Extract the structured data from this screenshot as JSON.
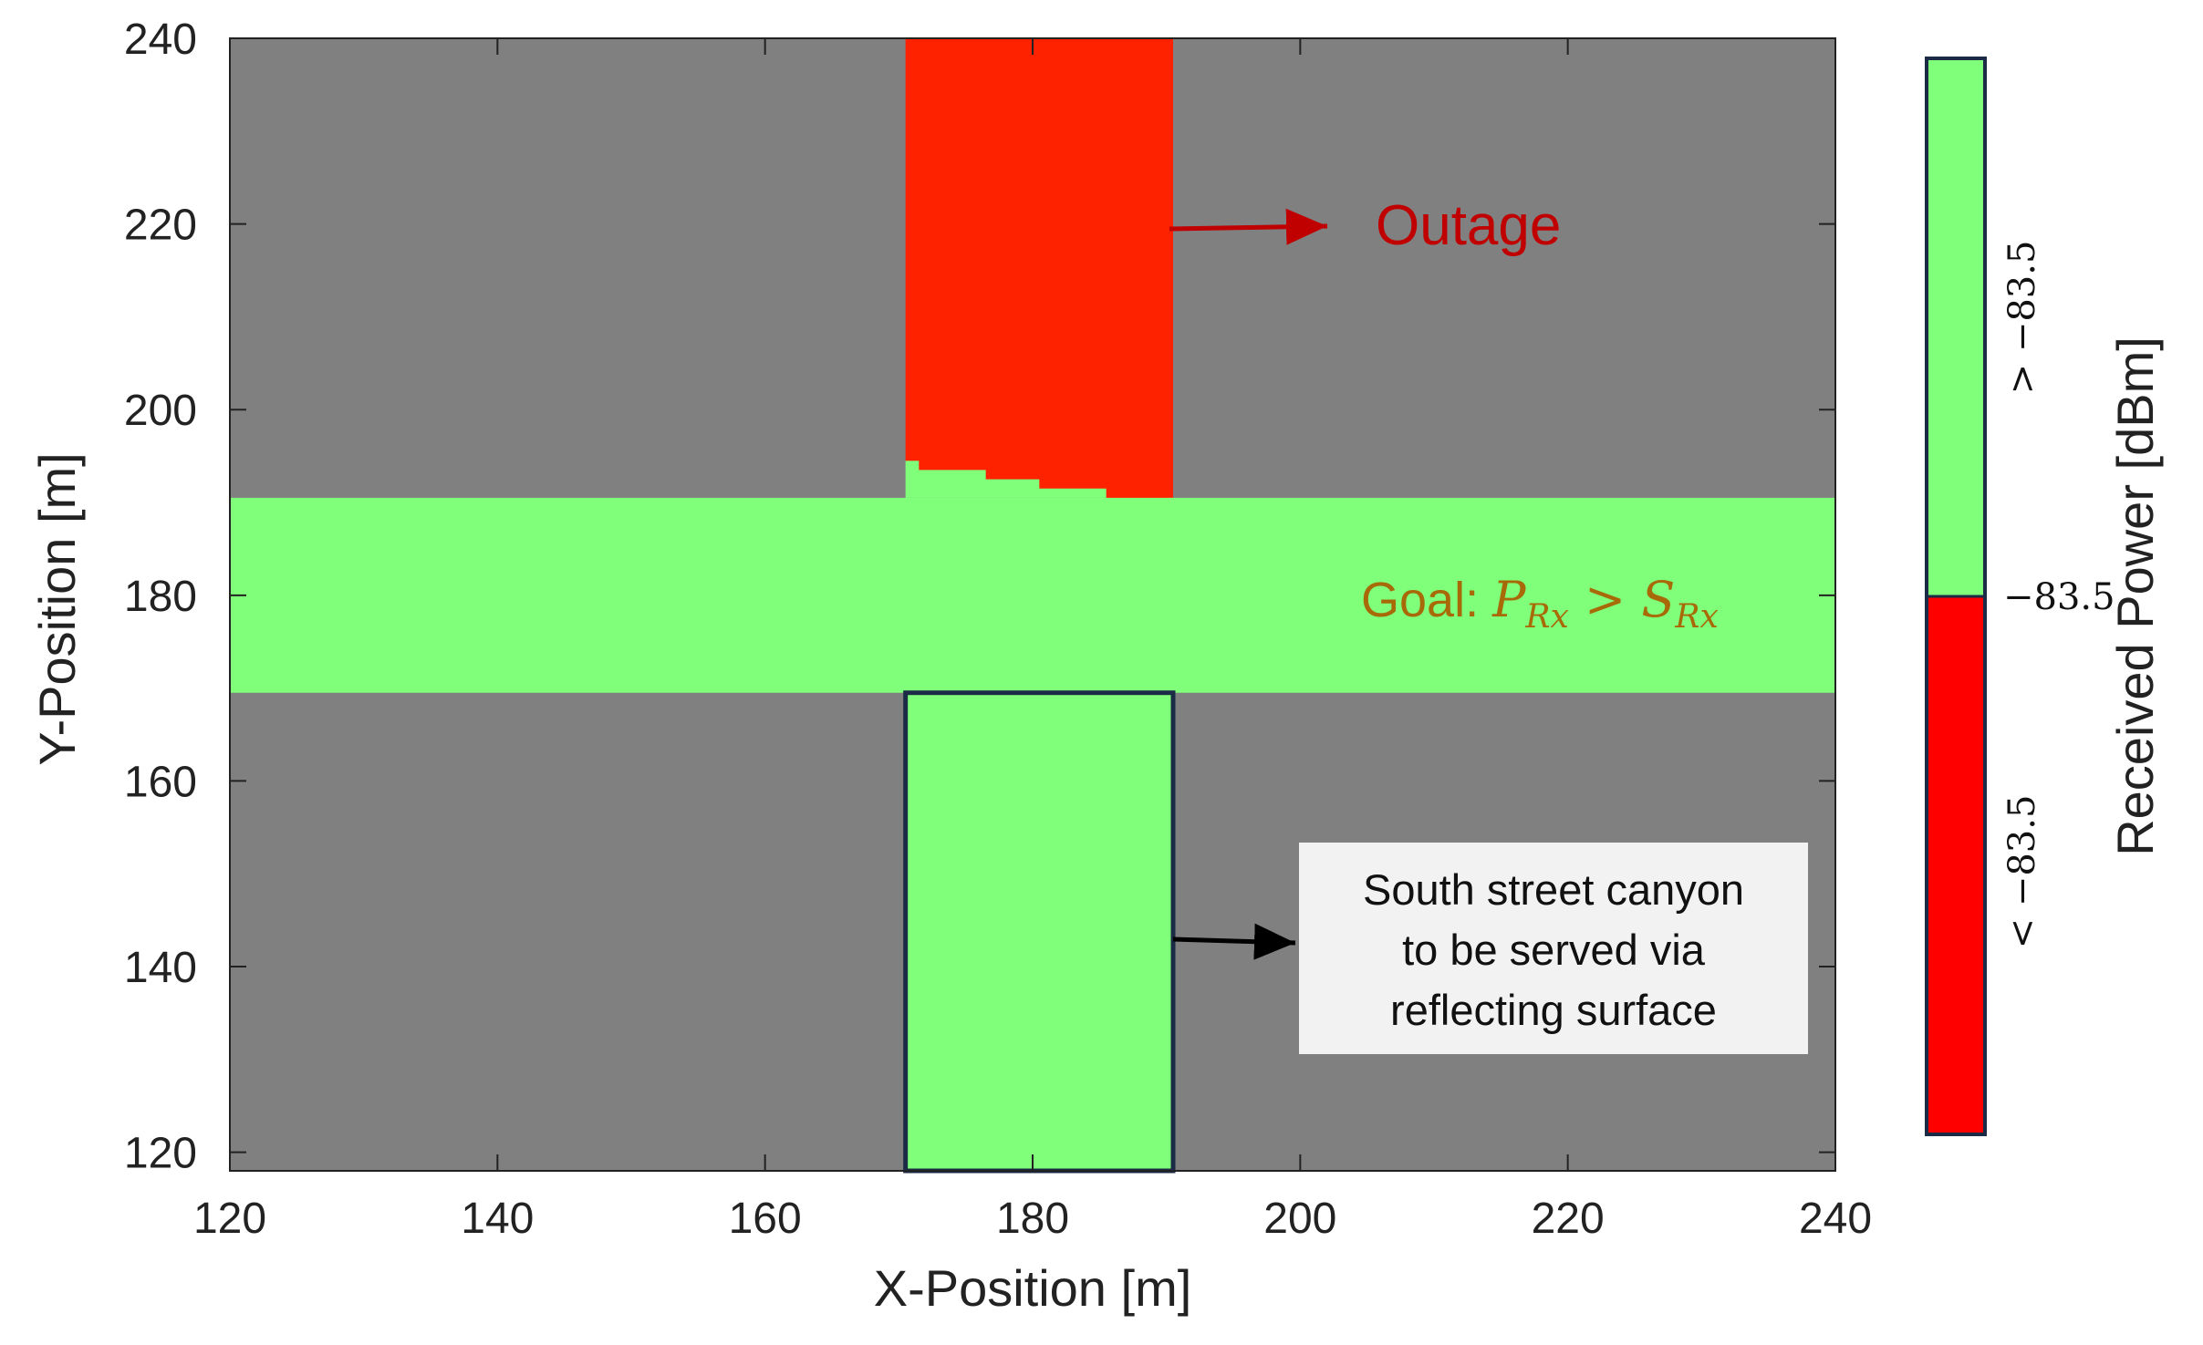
{
  "chart_data": {
    "type": "heatmap",
    "xlabel": "X-Position [m]",
    "ylabel": "Y-Position [m]",
    "xlim": [
      120,
      240
    ],
    "ylim": [
      118,
      240
    ],
    "xticks": [
      120,
      140,
      160,
      180,
      200,
      220,
      240
    ],
    "yticks": [
      120,
      140,
      160,
      180,
      200,
      220,
      240
    ],
    "grid": false,
    "colors": {
      "building": "#808080",
      "covered": "#80FF7A",
      "outage": "#FF2200",
      "annotation_red": "#C00000",
      "annotation_goal": "#A86A08",
      "box_outline": "#1B2A45",
      "box_fill": "#F2F2F2"
    },
    "regions": [
      {
        "name": "east-west street (covered)",
        "category": "> −83.5",
        "x": [
          120,
          240
        ],
        "y": [
          169.5,
          190.5
        ]
      },
      {
        "name": "north street canyon (covered part)",
        "category": "> −83.5",
        "x": [
          170.5,
          190.5
        ],
        "y": [
          190.5,
          194.5
        ]
      },
      {
        "name": "north street canyon (outage)",
        "category": "< −83.5",
        "x": [
          170.5,
          190.5
        ],
        "y": [
          190.5,
          240
        ],
        "lower_edge_steps": [
          {
            "x": [
              170.5,
              171.5
            ],
            "y": 194.5
          },
          {
            "x": [
              171.5,
              176.5
            ],
            "y": 193.5
          },
          {
            "x": [
              176.5,
              180.5
            ],
            "y": 192.5
          },
          {
            "x": [
              180.5,
              185.5
            ],
            "y": 191.5
          },
          {
            "x": [
              185.5,
              190.5
            ],
            "y": 190.5
          }
        ]
      },
      {
        "name": "south street canyon",
        "category": "> −83.5",
        "x": [
          170.5,
          190.5
        ],
        "y": [
          118,
          169.5
        ],
        "outlined": true
      }
    ],
    "annotations": {
      "outage": "Outage",
      "goal_prefix": "Goal: ",
      "goal_p": "P",
      "goal_p_sub": "Rx",
      "goal_op": " > ",
      "goal_s": "S",
      "goal_s_sub": "Rx",
      "box_lines": [
        "South street canyon",
        "to be served via",
        "reflecting surface"
      ]
    },
    "colorbar": {
      "label": "Received Power [dBm]",
      "threshold": "−83.5",
      "categories": [
        {
          "label": "> −83.5",
          "color": "#80FF7A"
        },
        {
          "label": "< −83.5",
          "color": "#FF0000"
        }
      ]
    }
  }
}
